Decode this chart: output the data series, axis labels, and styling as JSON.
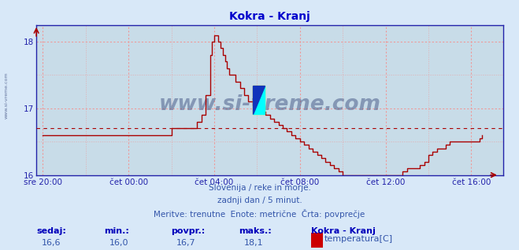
{
  "title": "Kokra - Kranj",
  "title_color": "#0000cc",
  "bg_color": "#d8e8f8",
  "plot_bg_color": "#c8dce8",
  "grid_color": "#ee9999",
  "grid_dotted_color": "#cc6666",
  "axis_color": "#2222aa",
  "line_color": "#aa0000",
  "avg_value": 16.7,
  "ylim": [
    16.0,
    18.25
  ],
  "yticks": [
    16,
    17,
    18
  ],
  "tick_color": "#2222aa",
  "watermark": "www.si-vreme.com",
  "watermark_color": "#334477",
  "subtitle1": "Slovenija / reke in morje.",
  "subtitle2": "zadnji dan / 5 minut.",
  "subtitle3": "Meritve: trenutne  Enote: metrične  Črta: povprečje",
  "footer_labels": [
    "sedaj:",
    "min.:",
    "povpr.:",
    "maks.:"
  ],
  "footer_values": [
    "16,6",
    "16,0",
    "16,7",
    "18,1"
  ],
  "footer_series": "Kokra - Kranj",
  "footer_legend_color": "#cc0000",
  "footer_legend_label": "temperatura[C]",
  "x_tick_labels": [
    "sre 20:00",
    "čet 00:00",
    "čet 04:00",
    "čet 08:00",
    "čet 12:00",
    "čet 16:00"
  ],
  "x_tick_positions": [
    0,
    4,
    8,
    12,
    16,
    20
  ],
  "xlim": [
    -0.3,
    21.5
  ],
  "temp_data_x": [
    0.0,
    0.2,
    0.4,
    0.6,
    0.8,
    1.0,
    1.2,
    1.4,
    1.6,
    1.8,
    2.0,
    2.2,
    2.4,
    2.6,
    2.8,
    3.0,
    3.2,
    3.4,
    3.6,
    3.8,
    4.0,
    4.2,
    4.4,
    4.6,
    4.8,
    5.0,
    5.2,
    5.4,
    5.6,
    5.8,
    6.0,
    6.2,
    6.4,
    6.6,
    6.8,
    7.0,
    7.2,
    7.4,
    7.6,
    7.8,
    7.9,
    8.0,
    8.1,
    8.2,
    8.3,
    8.4,
    8.5,
    8.6,
    8.7,
    9.0,
    9.2,
    9.4,
    9.6,
    9.8,
    10.0,
    10.2,
    10.4,
    10.6,
    10.8,
    11.0,
    11.2,
    11.4,
    11.6,
    11.8,
    12.0,
    12.2,
    12.4,
    12.6,
    12.8,
    13.0,
    13.2,
    13.4,
    13.6,
    13.8,
    14.0,
    14.2,
    14.4,
    14.6,
    14.8,
    15.0,
    15.2,
    15.4,
    15.6,
    15.8,
    16.0,
    16.2,
    16.4,
    16.6,
    16.8,
    17.0,
    17.2,
    17.4,
    17.6,
    17.8,
    18.0,
    18.2,
    18.4,
    18.6,
    18.8,
    19.0,
    19.2,
    19.4,
    19.6,
    19.8,
    20.0,
    20.2,
    20.4,
    20.5
  ],
  "temp_data_y": [
    16.6,
    16.6,
    16.6,
    16.6,
    16.6,
    16.6,
    16.6,
    16.6,
    16.6,
    16.6,
    16.6,
    16.6,
    16.6,
    16.6,
    16.6,
    16.6,
    16.6,
    16.6,
    16.6,
    16.6,
    16.6,
    16.6,
    16.6,
    16.6,
    16.6,
    16.6,
    16.6,
    16.6,
    16.6,
    16.6,
    16.7,
    16.7,
    16.7,
    16.7,
    16.7,
    16.7,
    16.8,
    16.9,
    17.2,
    17.8,
    18.0,
    18.1,
    18.1,
    18.0,
    17.9,
    17.8,
    17.7,
    17.6,
    17.5,
    17.4,
    17.3,
    17.2,
    17.1,
    17.05,
    17.0,
    16.95,
    16.9,
    16.85,
    16.8,
    16.75,
    16.7,
    16.65,
    16.6,
    16.55,
    16.5,
    16.45,
    16.4,
    16.35,
    16.3,
    16.25,
    16.2,
    16.15,
    16.1,
    16.05,
    16.0,
    16.0,
    16.0,
    16.0,
    16.0,
    16.0,
    16.0,
    16.0,
    16.0,
    16.0,
    16.0,
    16.0,
    16.0,
    16.0,
    16.05,
    16.1,
    16.1,
    16.1,
    16.15,
    16.2,
    16.3,
    16.35,
    16.4,
    16.4,
    16.45,
    16.5,
    16.5,
    16.5,
    16.5,
    16.5,
    16.5,
    16.5,
    16.55,
    16.6
  ]
}
